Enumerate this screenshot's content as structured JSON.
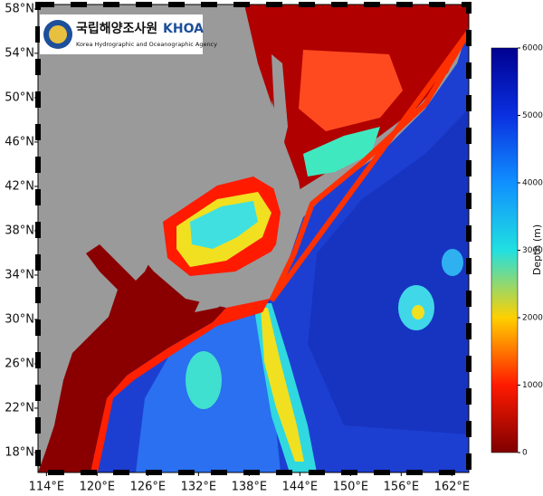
{
  "map": {
    "logo": {
      "name": "국립해양조사원",
      "acronym": "KHOA",
      "subtitle": "Korea Hydrographic and Oceanographic Agency"
    },
    "xlim": [
      113,
      164
    ],
    "ylim": [
      16.2,
      58.4
    ],
    "lon_ticks": [
      {
        "value": 114,
        "label": "114°E"
      },
      {
        "value": 120,
        "label": "120°E"
      },
      {
        "value": 126,
        "label": "126°E"
      },
      {
        "value": 132,
        "label": "132°E"
      },
      {
        "value": 138,
        "label": "138°E"
      },
      {
        "value": 144,
        "label": "144°E"
      },
      {
        "value": 150,
        "label": "150°E"
      },
      {
        "value": 156,
        "label": "156°E"
      },
      {
        "value": 162,
        "label": "162°E"
      }
    ],
    "lat_ticks": [
      {
        "value": 18,
        "label": "18°N"
      },
      {
        "value": 22,
        "label": "22°N"
      },
      {
        "value": 26,
        "label": "26°N"
      },
      {
        "value": 30,
        "label": "30°N"
      },
      {
        "value": 34,
        "label": "34°N"
      },
      {
        "value": 38,
        "label": "38°N"
      },
      {
        "value": 42,
        "label": "42°N"
      },
      {
        "value": 46,
        "label": "46°N"
      },
      {
        "value": 50,
        "label": "50°N"
      },
      {
        "value": 54,
        "label": "54°N"
      },
      {
        "value": 58,
        "label": "58°N"
      }
    ],
    "colorbar": {
      "label": "Depth (m)",
      "range": [
        0,
        6000
      ],
      "ticks": [
        0,
        1000,
        2000,
        3000,
        4000,
        5000,
        6000
      ],
      "colors": [
        "#7f0000",
        "#ff1a00",
        "#ffd000",
        "#20e0e0",
        "#1090ff",
        "#0a30e0",
        "#000090"
      ]
    }
  }
}
